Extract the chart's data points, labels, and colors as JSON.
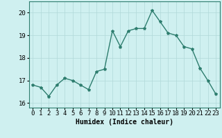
{
  "x": [
    0,
    1,
    2,
    3,
    4,
    5,
    6,
    7,
    8,
    9,
    10,
    11,
    12,
    13,
    14,
    15,
    16,
    17,
    18,
    19,
    20,
    21,
    22,
    23
  ],
  "y": [
    16.8,
    16.7,
    16.3,
    16.8,
    17.1,
    17.0,
    16.8,
    16.6,
    17.4,
    17.5,
    19.2,
    18.5,
    19.2,
    19.3,
    19.3,
    20.1,
    19.6,
    19.1,
    19.0,
    18.5,
    18.4,
    17.55,
    17.0,
    16.4
  ],
  "line_color": "#2d7d6e",
  "marker": "*",
  "marker_size": 3,
  "background_color": "#cff0f0",
  "grid_color": "#b0d8d8",
  "xlabel": "Humidex (Indice chaleur)",
  "xlabel_fontsize": 7,
  "tick_fontsize": 6.5,
  "ylim": [
    15.8,
    20.5
  ],
  "yticks": [
    16,
    17,
    18,
    19,
    20
  ],
  "xlim": [
    -0.5,
    23.5
  ],
  "linewidth": 1.0
}
